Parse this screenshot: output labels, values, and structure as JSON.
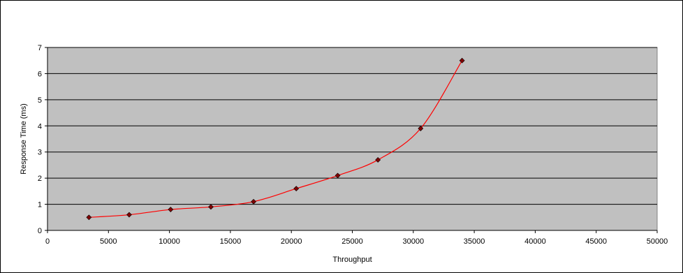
{
  "chart_data": {
    "type": "scatter",
    "title": "",
    "xlabel": "Throughput",
    "ylabel": "Response Time (ms)",
    "xlim": [
      0,
      50000
    ],
    "ylim": [
      0,
      7
    ],
    "x_ticks": [
      0,
      5000,
      10000,
      15000,
      20000,
      25000,
      30000,
      35000,
      40000,
      45000,
      50000
    ],
    "y_ticks": [
      0,
      1,
      2,
      3,
      4,
      5,
      6,
      7
    ],
    "grid": "horizontal",
    "legend": "none",
    "background_color": "#c0c0c0",
    "line_color": "#ff0000",
    "marker_color": "#800000",
    "smoothed_line": true,
    "series": [
      {
        "x": [
          3400,
          6700,
          10100,
          13400,
          16900,
          20400,
          23800,
          27100,
          30600,
          34000
        ],
        "y": [
          0.5,
          0.6,
          0.8,
          0.9,
          1.1,
          1.6,
          2.1,
          2.7,
          3.9,
          6.5
        ]
      }
    ]
  }
}
